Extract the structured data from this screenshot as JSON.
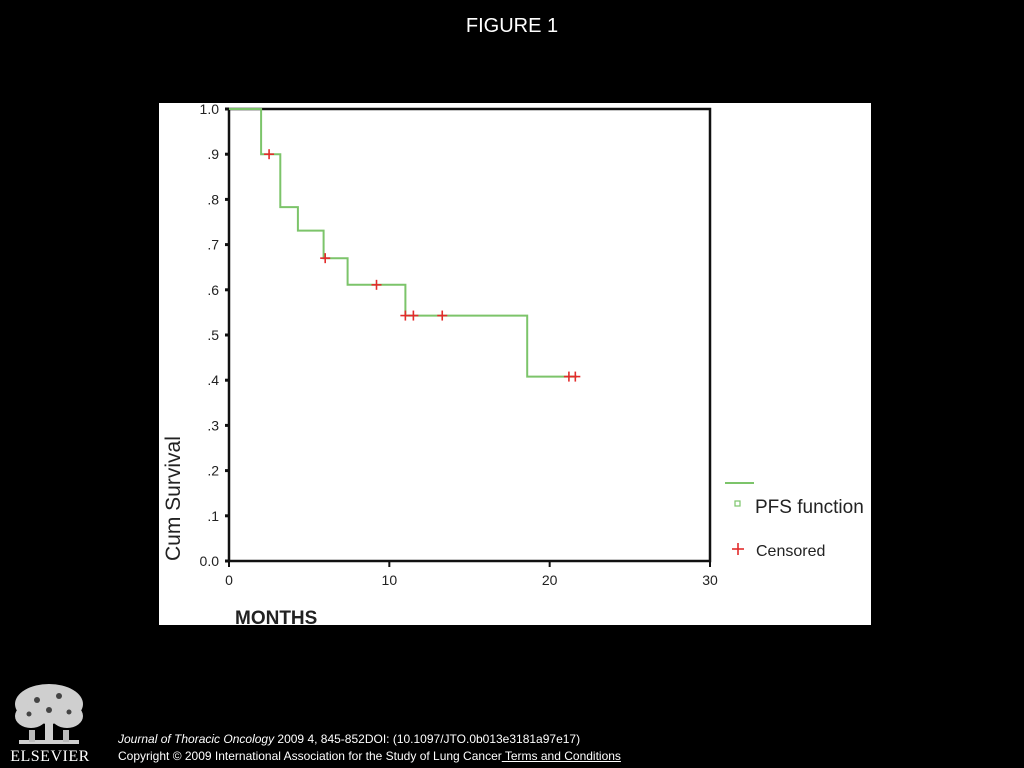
{
  "figure_title": "FIGURE 1",
  "chart_data": {
    "type": "line",
    "subtype": "kaplan-meier",
    "title": "",
    "xlabel": "MONTHS",
    "ylabel": "Cum Survival",
    "xlim": [
      0,
      30
    ],
    "ylim": [
      0,
      1
    ],
    "x_ticks": [
      "0",
      "10",
      "20",
      "30"
    ],
    "y_ticks": [
      "0.0",
      ".1",
      ".2",
      ".3",
      ".4",
      ".5",
      ".6",
      ".7",
      ".8",
      ".9",
      "1.0"
    ],
    "grid": false,
    "legend_position": "right",
    "series": [
      {
        "name": "PFS function",
        "color": "#7cc46a",
        "x": [
          0,
          2,
          2,
          3.2,
          3.2,
          4.3,
          4.3,
          5.9,
          5.9,
          7.4,
          7.4,
          11.0,
          11.0,
          18.6,
          18.6,
          21.7
        ],
        "y": [
          1.0,
          1.0,
          0.9,
          0.9,
          0.783,
          0.783,
          0.731,
          0.731,
          0.67,
          0.67,
          0.611,
          0.611,
          0.543,
          0.543,
          0.408,
          0.408
        ]
      },
      {
        "name": "Censored",
        "color": "#e32b2b",
        "marker": "+",
        "x": [
          2.5,
          6.0,
          9.2,
          11.0,
          11.5,
          13.3,
          21.2,
          21.6
        ],
        "y": [
          0.9,
          0.67,
          0.611,
          0.543,
          0.543,
          0.543,
          0.408,
          0.408
        ]
      }
    ]
  },
  "legend": {
    "function_label": "PFS function",
    "censored_label": "Censored"
  },
  "footer": {
    "journal": "Journal of Thoracic Oncology",
    "citation": " 2009 4, 845-852DOI: (10.1097/JTO.0b013e3181a97e17)",
    "copyright": "Copyright © 2009 International Association for the Study of Lung Cancer",
    "terms": " Terms and Conditions"
  },
  "publisher_logo_text": "ELSEVIER"
}
